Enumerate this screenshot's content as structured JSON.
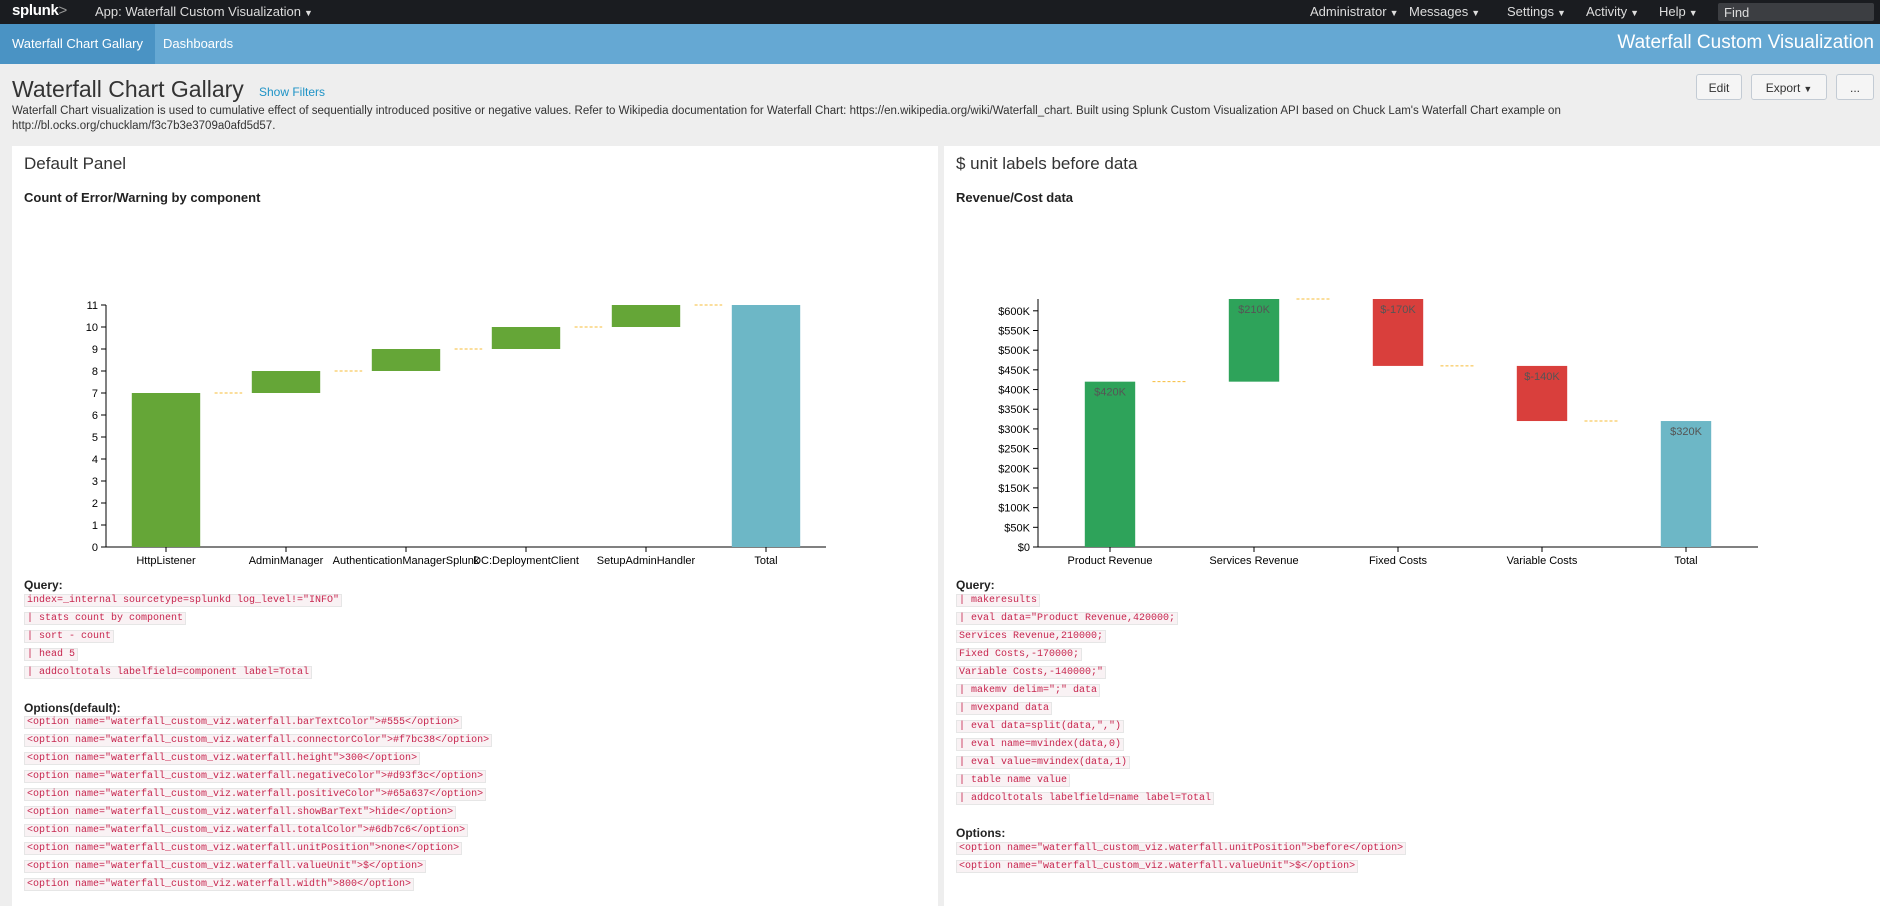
{
  "topbar": {
    "logo": "splunk",
    "logo_suffix": ">",
    "app_menu": "App: Waterfall Custom Visualization",
    "menus": [
      "Administrator",
      "Messages",
      "Settings",
      "Activity",
      "Help"
    ],
    "find_placeholder": "Find"
  },
  "appbar": {
    "tabs": [
      "Waterfall Chart Gallary",
      "Dashboards"
    ],
    "app_title": "Waterfall Custom Visualization"
  },
  "dashboard": {
    "title": "Waterfall Chart Gallary",
    "show_filters": "Show Filters",
    "description": "Waterfall Chart visualization is used to cumulative effect of sequentially introduced positive or negative values. Refer to Wikipedia documentation for Waterfall Chart: https://en.wikipedia.org/wiki/Waterfall_chart. Built using Splunk Custom Visualization API based on Chuck Lam's Waterfall Chart example on http://bl.ocks.org/chucklam/f3c7b3e3709a0afd5d57.",
    "buttons": {
      "edit": "Edit",
      "export": "Export",
      "more": "..."
    }
  },
  "colors": {
    "positive": "#65a637",
    "negative": "#d93f3c",
    "total": "#6db7c6",
    "connector": "#f7bc38",
    "revenue_positive": "#2ea35a"
  },
  "panels": [
    {
      "title": "Default Panel",
      "chart_title": "Count of Error/Warning by component",
      "query_label": "Query:",
      "query": [
        "index=_internal sourcetype=splunkd log_level!=\"INFO\"",
        "| stats count by component",
        "| sort - count",
        "| head 5",
        "| addcoltotals labelfield=component label=Total"
      ],
      "options_label": "Options(default):",
      "options": [
        "<option name=\"waterfall_custom_viz.waterfall.barTextColor\">#555</option>",
        "<option name=\"waterfall_custom_viz.waterfall.connectorColor\">#f7bc38</option>",
        "<option name=\"waterfall_custom_viz.waterfall.height\">300</option>",
        "<option name=\"waterfall_custom_viz.waterfall.negativeColor\">#d93f3c</option>",
        "<option name=\"waterfall_custom_viz.waterfall.positiveColor\">#65a637</option>",
        "<option name=\"waterfall_custom_viz.waterfall.showBarText\">hide</option>",
        "<option name=\"waterfall_custom_viz.waterfall.totalColor\">#6db7c6</option>",
        "<option name=\"waterfall_custom_viz.waterfall.unitPosition\">none</option>",
        "<option name=\"waterfall_custom_viz.waterfall.valueUnit\">$</option>",
        "<option name=\"waterfall_custom_viz.waterfall.width\">800</option>"
      ]
    },
    {
      "title": "$ unit labels before data",
      "chart_title": "Revenue/Cost data",
      "query_label": "Query:",
      "query": [
        "| makeresults",
        "| eval data=\"Product Revenue,420000;",
        "Services Revenue,210000;",
        "Fixed Costs,-170000;",
        "Variable Costs,-140000;\"",
        "| makemv delim=\";\" data",
        "| mvexpand data",
        "| eval data=split(data,\",\")",
        "| eval name=mvindex(data,0)",
        "| eval value=mvindex(data,1)",
        "| table name value",
        "| addcoltotals labelfield=name label=Total"
      ],
      "options_label": "Options:",
      "options": [
        "<option name=\"waterfall_custom_viz.waterfall.unitPosition\">before</option>",
        "<option name=\"waterfall_custom_viz.waterfall.valueUnit\">$</option>"
      ]
    }
  ],
  "chart_data": [
    {
      "type": "bar",
      "subtype": "waterfall",
      "title": "Count of Error/Warning by component",
      "categories": [
        "HttpListener",
        "AdminManager",
        "AuthenticationManagerSplunk",
        "DC:DeploymentClient",
        "SetupAdminHandler",
        "Total"
      ],
      "values": [
        7,
        1,
        1,
        1,
        1,
        11
      ],
      "is_total": [
        false,
        false,
        false,
        false,
        false,
        true
      ],
      "ylim": [
        0,
        11
      ],
      "yticks": [
        0,
        1,
        2,
        3,
        4,
        5,
        6,
        7,
        8,
        9,
        10,
        11
      ],
      "ytick_labels": [
        "0",
        "1",
        "2",
        "3",
        "4",
        "5",
        "6",
        "7",
        "8",
        "9",
        "10",
        "11"
      ],
      "show_bar_text": false,
      "bar_labels": [],
      "grid": false
    },
    {
      "type": "bar",
      "subtype": "waterfall",
      "title": "Revenue/Cost data",
      "categories": [
        "Product Revenue",
        "Services Revenue",
        "Fixed Costs",
        "Variable Costs",
        "Total"
      ],
      "values": [
        420000,
        210000,
        -170000,
        -140000,
        320000
      ],
      "is_total": [
        false,
        false,
        false,
        false,
        true
      ],
      "ylim": [
        0,
        630000
      ],
      "yticks": [
        0,
        50000,
        100000,
        150000,
        200000,
        250000,
        300000,
        350000,
        400000,
        450000,
        500000,
        550000,
        600000
      ],
      "ytick_labels": [
        "$0",
        "$50K",
        "$100K",
        "$150K",
        "$200K",
        "$250K",
        "$300K",
        "$350K",
        "$400K",
        "$450K",
        "$500K",
        "$550K",
        "$600K"
      ],
      "show_bar_text": true,
      "bar_labels": [
        "$420K",
        "$210K",
        "$-170K",
        "$-140K",
        "$320K"
      ],
      "grid": false
    }
  ]
}
